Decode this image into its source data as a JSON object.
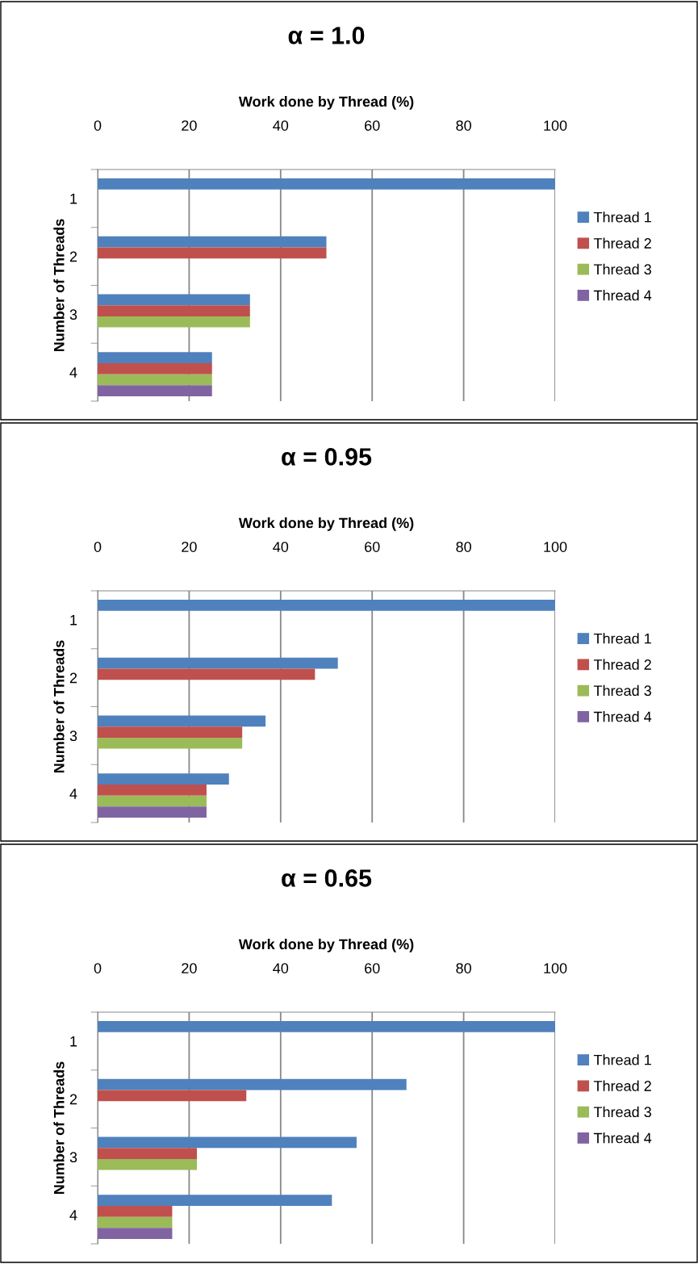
{
  "chart_data": [
    {
      "type": "bar",
      "orientation": "horizontal",
      "title": "α = 1.0",
      "xlabel": "Work done by Thread (%)",
      "ylabel": "Number of Threads",
      "categories": [
        "1",
        "2",
        "3",
        "4"
      ],
      "xlim": [
        0,
        100
      ],
      "xticks": [
        0,
        20,
        40,
        60,
        80,
        100
      ],
      "grid": "x",
      "legend": "right",
      "series": [
        {
          "name": "Thread 1",
          "color": "#4f81bd",
          "values": [
            100,
            50,
            33.3,
            25
          ]
        },
        {
          "name": "Thread 2",
          "color": "#c0504d",
          "values": [
            null,
            50,
            33.3,
            25
          ]
        },
        {
          "name": "Thread 3",
          "color": "#9bbb59",
          "values": [
            null,
            null,
            33.3,
            25
          ]
        },
        {
          "name": "Thread 4",
          "color": "#8064a2",
          "values": [
            null,
            null,
            null,
            25
          ]
        }
      ]
    },
    {
      "type": "bar",
      "orientation": "horizontal",
      "title": "α = 0.95",
      "xlabel": "Work done by Thread (%)",
      "ylabel": "Number of Threads",
      "categories": [
        "1",
        "2",
        "3",
        "4"
      ],
      "xlim": [
        0,
        100
      ],
      "xticks": [
        0,
        20,
        40,
        60,
        80,
        100
      ],
      "grid": "x",
      "legend": "right",
      "series": [
        {
          "name": "Thread 1",
          "color": "#4f81bd",
          "values": [
            100,
            52.5,
            36.7,
            28.7
          ]
        },
        {
          "name": "Thread 2",
          "color": "#c0504d",
          "values": [
            null,
            47.5,
            31.6,
            23.8
          ]
        },
        {
          "name": "Thread 3",
          "color": "#9bbb59",
          "values": [
            null,
            null,
            31.6,
            23.8
          ]
        },
        {
          "name": "Thread 4",
          "color": "#8064a2",
          "values": [
            null,
            null,
            null,
            23.8
          ]
        }
      ]
    },
    {
      "type": "bar",
      "orientation": "horizontal",
      "title": "α = 0.65",
      "xlabel": "Work done by Thread (%)",
      "ylabel": "Number of Threads",
      "categories": [
        "1",
        "2",
        "3",
        "4"
      ],
      "xlim": [
        0,
        100
      ],
      "xticks": [
        0,
        20,
        40,
        60,
        80,
        100
      ],
      "grid": "x",
      "legend": "right",
      "series": [
        {
          "name": "Thread 1",
          "color": "#4f81bd",
          "values": [
            100,
            67.5,
            56.6,
            51.2
          ]
        },
        {
          "name": "Thread 2",
          "color": "#c0504d",
          "values": [
            null,
            32.5,
            21.7,
            16.3
          ]
        },
        {
          "name": "Thread 3",
          "color": "#9bbb59",
          "values": [
            null,
            null,
            21.7,
            16.3
          ]
        },
        {
          "name": "Thread 4",
          "color": "#8064a2",
          "values": [
            null,
            null,
            null,
            16.3
          ]
        }
      ]
    }
  ]
}
